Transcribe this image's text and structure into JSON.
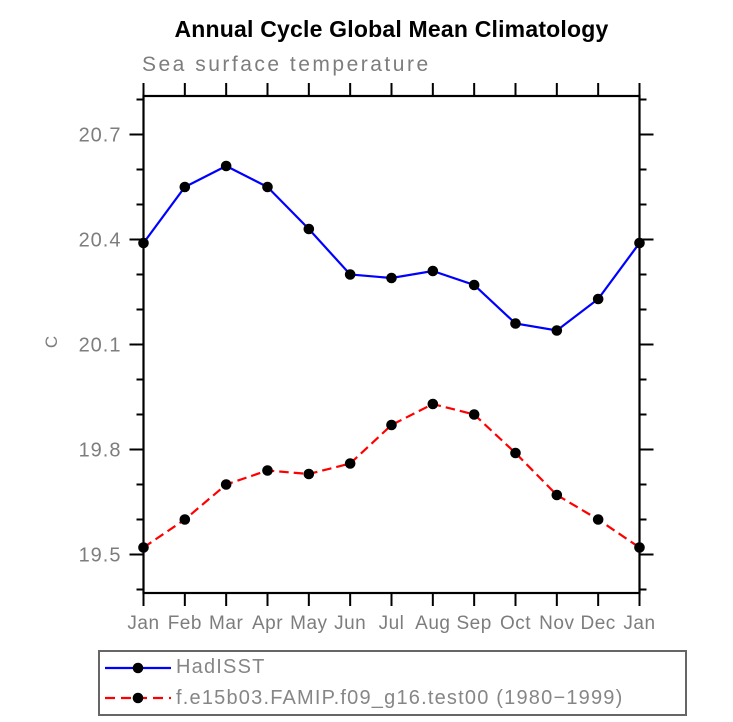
{
  "chart_data": {
    "type": "line",
    "title": "Annual Cycle Global Mean Climatology",
    "subtitle": "Sea surface temperature",
    "xlabel": "",
    "ylabel": "C",
    "categories": [
      "Jan",
      "Feb",
      "Mar",
      "Apr",
      "May",
      "Jun",
      "Jul",
      "Aug",
      "Sep",
      "Oct",
      "Nov",
      "Dec",
      "Jan"
    ],
    "series": [
      {
        "name": "HadISST",
        "color": "#0000ff",
        "line_style": "solid",
        "marker": "circle",
        "marker_color": "#000000",
        "values": [
          20.39,
          20.55,
          20.61,
          20.55,
          20.43,
          20.3,
          20.29,
          20.31,
          20.27,
          20.16,
          20.14,
          20.23,
          20.39
        ]
      },
      {
        "name": "f.e15b03.FAMIP.f09_g16.test00 (1980−1999)",
        "color": "#ff0000",
        "line_style": "dashed",
        "marker": "circle",
        "marker_color": "#000000",
        "values": [
          19.52,
          19.6,
          19.7,
          19.74,
          19.73,
          19.76,
          19.87,
          19.93,
          19.9,
          19.79,
          19.67,
          19.6,
          19.52
        ]
      }
    ],
    "ylim": [
      19.39,
      20.81
    ],
    "yticks_major": [
      19.5,
      19.8,
      20.1,
      20.4,
      20.7
    ],
    "ytick_minor_step": 0.1,
    "grid": false,
    "legend_position": "bottom-left",
    "axis_color": "#000000",
    "label_color": "#7d7d7d",
    "units_note": "degrees C"
  }
}
